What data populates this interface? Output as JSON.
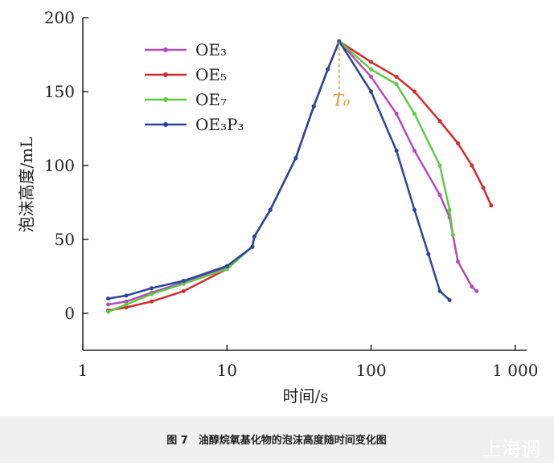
{
  "chart_data": {
    "type": "line",
    "x_label": "时间/s",
    "y_label": "泡沫高度/mL",
    "xlog": true,
    "xlim": [
      1,
      1200
    ],
    "xticks": [
      1,
      10,
      100,
      {
        "value": 1000,
        "label": "1 000"
      }
    ],
    "ylim": [
      -25,
      200
    ],
    "yticks": [
      0,
      50,
      100,
      150,
      200
    ],
    "legend": "upper left",
    "series": [
      {
        "name": "OE₃",
        "color": "#b34ab8",
        "x": [
          1.5,
          2,
          3,
          5,
          10,
          15,
          15.5,
          20,
          30,
          40,
          50,
          60,
          100,
          150,
          200,
          300,
          350,
          400,
          500,
          540
        ],
        "values": [
          6,
          8,
          14,
          21,
          31,
          45,
          52,
          70,
          105,
          140,
          165,
          184,
          160,
          135,
          110,
          80,
          65,
          35,
          18,
          15
        ]
      },
      {
        "name": "OE₅",
        "color": "#d42a2a",
        "x": [
          1.5,
          2,
          3,
          5,
          10,
          15,
          15.5,
          20,
          30,
          40,
          50,
          60,
          100,
          150,
          200,
          300,
          400,
          500,
          600,
          680
        ],
        "values": [
          2,
          4,
          8,
          15,
          30,
          45,
          52,
          70,
          105,
          140,
          165,
          184,
          170,
          160,
          150,
          130,
          115,
          100,
          85,
          73
        ]
      },
      {
        "name": "OE₇",
        "color": "#5ccb45",
        "x": [
          1.5,
          2,
          3,
          5,
          10,
          15,
          15.5,
          20,
          30,
          40,
          50,
          60,
          100,
          150,
          200,
          300,
          350,
          370
        ],
        "values": [
          1,
          6,
          13,
          20,
          30,
          45,
          52,
          70,
          105,
          140,
          165,
          184,
          165,
          155,
          135,
          100,
          70,
          53
        ]
      },
      {
        "name": "OE₃P₃",
        "color": "#2a45a0",
        "x": [
          1.5,
          2,
          3,
          5,
          10,
          15,
          15.5,
          20,
          30,
          40,
          50,
          60,
          100,
          150,
          200,
          250,
          300,
          350
        ],
        "values": [
          10,
          12,
          17,
          22,
          32,
          45,
          52,
          70,
          105,
          140,
          165,
          184,
          150,
          110,
          70,
          40,
          15,
          9
        ]
      }
    ],
    "annotation": {
      "text": "T₀",
      "x": 60,
      "y": 184,
      "y_end": 148,
      "color": "#e8901e"
    },
    "caption": "图 7　油醇烷氧基化物的泡沫高度随时间变化图",
    "watermark": "上海调"
  }
}
